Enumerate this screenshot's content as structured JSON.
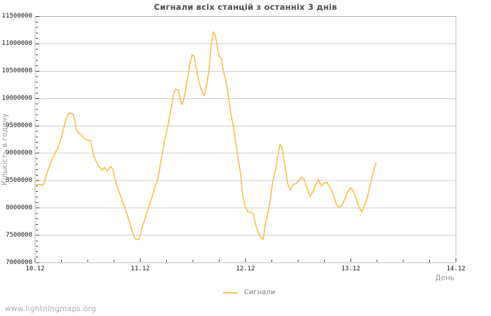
{
  "footer": {
    "watermark": "www.lightningmaps.org"
  },
  "chart_data": {
    "type": "line",
    "title": "Сигнали всіх станцій з останніх 3 днів",
    "xlabel": "День",
    "ylabel": "Кількість в годину",
    "grid": "horizontal-only",
    "legend_position": "bottom-center",
    "x_tick_labels": [
      "10.12",
      "11.12",
      "12.12",
      "13.12",
      "14.12"
    ],
    "y_tick_labels": [
      "7000000",
      "7500000",
      "8000000",
      "8500000",
      "9000000",
      "9500000",
      "10000000",
      "10500000",
      "11000000",
      "11500000"
    ],
    "xlim": [
      0,
      4
    ],
    "ylim": [
      7000000,
      11500000
    ],
    "y_tick_step": 500000,
    "y_minor_step": 100000,
    "x_minor_step": 0.25,
    "series": [
      {
        "name": "Сигнали",
        "color": "#F4C64A",
        "points": [
          [
            0.007,
            8430000
          ],
          [
            0.08,
            8420000
          ],
          [
            0.107,
            8590000
          ],
          [
            0.127,
            8715000
          ],
          [
            0.153,
            8845000
          ],
          [
            0.173,
            8930000
          ],
          [
            0.193,
            9015000
          ],
          [
            0.22,
            9100000
          ],
          [
            0.24,
            9230000
          ],
          [
            0.26,
            9360000
          ],
          [
            0.287,
            9575000
          ],
          [
            0.307,
            9685000
          ],
          [
            0.327,
            9740000
          ],
          [
            0.36,
            9720000
          ],
          [
            0.373,
            9640000
          ],
          [
            0.387,
            9490000
          ],
          [
            0.4,
            9400000
          ],
          [
            0.42,
            9360000
          ],
          [
            0.44,
            9340000
          ],
          [
            0.473,
            9255000
          ],
          [
            0.527,
            9230000
          ],
          [
            0.56,
            8930000
          ],
          [
            0.607,
            8755000
          ],
          [
            0.64,
            8690000
          ],
          [
            0.66,
            8740000
          ],
          [
            0.687,
            8670000
          ],
          [
            0.72,
            8765000
          ],
          [
            0.74,
            8700000
          ],
          [
            0.76,
            8520000
          ],
          [
            0.793,
            8320000
          ],
          [
            0.84,
            8070000
          ],
          [
            0.887,
            7810000
          ],
          [
            0.927,
            7550000
          ],
          [
            0.953,
            7430000
          ],
          [
            0.987,
            7420000
          ],
          [
            1.02,
            7660000
          ],
          [
            1.053,
            7850000
          ],
          [
            1.087,
            8050000
          ],
          [
            1.127,
            8300000
          ],
          [
            1.173,
            8585000
          ],
          [
            1.193,
            8830000
          ],
          [
            1.227,
            9200000
          ],
          [
            1.26,
            9480000
          ],
          [
            1.287,
            9750000
          ],
          [
            1.313,
            10050000
          ],
          [
            1.333,
            10170000
          ],
          [
            1.36,
            10160000
          ],
          [
            1.387,
            9920000
          ],
          [
            1.4,
            9890000
          ],
          [
            1.42,
            10050000
          ],
          [
            1.447,
            10350000
          ],
          [
            1.473,
            10650000
          ],
          [
            1.493,
            10800000
          ],
          [
            1.513,
            10770000
          ],
          [
            1.533,
            10550000
          ],
          [
            1.553,
            10350000
          ],
          [
            1.58,
            10160000
          ],
          [
            1.6,
            10070000
          ],
          [
            1.613,
            10060000
          ],
          [
            1.633,
            10270000
          ],
          [
            1.653,
            10530000
          ],
          [
            1.673,
            10960000
          ],
          [
            1.693,
            11220000
          ],
          [
            1.713,
            11150000
          ],
          [
            1.727,
            11000000
          ],
          [
            1.747,
            10780000
          ],
          [
            1.767,
            10750000
          ],
          [
            1.793,
            10480000
          ],
          [
            1.82,
            10265000
          ],
          [
            1.84,
            10005000
          ],
          [
            1.86,
            9725000
          ],
          [
            1.887,
            9465000
          ],
          [
            1.907,
            9185000
          ],
          [
            1.927,
            8925000
          ],
          [
            1.953,
            8645000
          ],
          [
            1.973,
            8240000
          ],
          [
            1.993,
            8045000
          ],
          [
            2.02,
            7940000
          ],
          [
            2.047,
            7920000
          ],
          [
            2.073,
            7900000
          ],
          [
            2.093,
            7725000
          ],
          [
            2.12,
            7550000
          ],
          [
            2.147,
            7465000
          ],
          [
            2.167,
            7420000
          ],
          [
            2.193,
            7745000
          ],
          [
            2.22,
            7980000
          ],
          [
            2.24,
            8200000
          ],
          [
            2.26,
            8500000
          ],
          [
            2.287,
            8715000
          ],
          [
            2.307,
            8950000
          ],
          [
            2.327,
            9160000
          ],
          [
            2.347,
            9100000
          ],
          [
            2.373,
            8800000
          ],
          [
            2.4,
            8450000
          ],
          [
            2.427,
            8330000
          ],
          [
            2.453,
            8420000
          ],
          [
            2.48,
            8450000
          ],
          [
            2.507,
            8500000
          ],
          [
            2.533,
            8560000
          ],
          [
            2.56,
            8520000
          ],
          [
            2.587,
            8350000
          ],
          [
            2.613,
            8210000
          ],
          [
            2.64,
            8290000
          ],
          [
            2.667,
            8420000
          ],
          [
            2.693,
            8520000
          ],
          [
            2.72,
            8400000
          ],
          [
            2.747,
            8450000
          ],
          [
            2.773,
            8470000
          ],
          [
            2.8,
            8390000
          ],
          [
            2.82,
            8300000
          ],
          [
            2.84,
            8200000
          ],
          [
            2.867,
            8050000
          ],
          [
            2.893,
            8010000
          ],
          [
            2.92,
            8060000
          ],
          [
            2.947,
            8180000
          ],
          [
            2.973,
            8300000
          ],
          [
            3.0,
            8370000
          ],
          [
            3.027,
            8300000
          ],
          [
            3.053,
            8160000
          ],
          [
            3.08,
            8010000
          ],
          [
            3.107,
            7930000
          ],
          [
            3.133,
            8050000
          ],
          [
            3.16,
            8210000
          ],
          [
            3.187,
            8440000
          ],
          [
            3.213,
            8650000
          ],
          [
            3.24,
            8820000
          ]
        ]
      }
    ]
  }
}
